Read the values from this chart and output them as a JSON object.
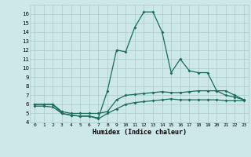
{
  "title": "",
  "xlabel": "Humidex (Indice chaleur)",
  "x": [
    0,
    1,
    2,
    3,
    4,
    5,
    6,
    7,
    8,
    9,
    10,
    11,
    12,
    13,
    14,
    15,
    16,
    17,
    18,
    19,
    20,
    21,
    22,
    23
  ],
  "curve_top": [
    6.0,
    6.0,
    6.0,
    5.0,
    4.8,
    4.7,
    4.7,
    4.5,
    7.5,
    12.0,
    11.8,
    14.5,
    16.2,
    16.2,
    14.0,
    9.5,
    11.0,
    9.7,
    9.5,
    9.5,
    7.5,
    7.5,
    7.0,
    6.5
  ],
  "curve_mid": [
    6.0,
    6.0,
    6.0,
    5.2,
    5.0,
    5.0,
    5.0,
    5.0,
    5.2,
    6.5,
    7.0,
    7.1,
    7.2,
    7.3,
    7.4,
    7.3,
    7.3,
    7.4,
    7.5,
    7.5,
    7.5,
    7.0,
    6.8,
    6.5
  ],
  "curve_bot": [
    5.8,
    5.8,
    5.7,
    5.0,
    4.8,
    4.7,
    4.7,
    4.4,
    5.0,
    5.5,
    6.0,
    6.2,
    6.3,
    6.4,
    6.5,
    6.6,
    6.5,
    6.5,
    6.5,
    6.5,
    6.5,
    6.4,
    6.4,
    6.4
  ],
  "line_color": "#1a6b5a",
  "bg_color": "#cce8e8",
  "grid_color": "#adc8c8",
  "ylim": [
    4,
    17
  ],
  "yticks": [
    4,
    5,
    6,
    7,
    8,
    9,
    10,
    11,
    12,
    13,
    14,
    15,
    16
  ],
  "xlim": [
    -0.5,
    23.5
  ]
}
